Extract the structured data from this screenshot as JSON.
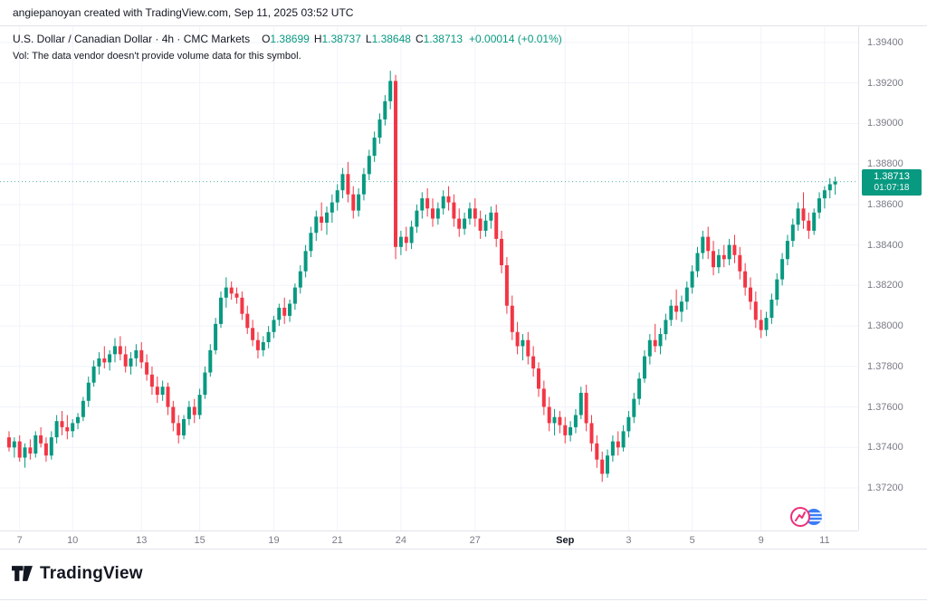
{
  "attribution": "angiepanoyan created with TradingView.com, Sep 11, 2025 03:52 UTC",
  "legend": {
    "title": "U.S. Dollar / Canadian Dollar · 4h · CMC Markets",
    "ohlc": {
      "o_label": "O",
      "o": "1.38699",
      "h_label": "H",
      "h": "1.38737",
      "l_label": "L",
      "l": "1.38648",
      "c_label": "C",
      "c": "1.38713",
      "change": "+0.00014 (+0.01%)"
    },
    "vol_note": "Vol: The data vendor doesn't provide volume data for this symbol."
  },
  "price_badge": {
    "price": "1.38713",
    "countdown": "01:07:18"
  },
  "footer": {
    "brand": "TradingView"
  },
  "colors": {
    "up": "#089981",
    "down": "#F23645",
    "text": "#131722",
    "muted": "#787b86",
    "grid": "#F0F3FA",
    "axis_border": "#E0E3EB",
    "badge_bg": "#089981"
  },
  "chart_data": {
    "type": "candlestick",
    "title": "U.S. Dollar / Canadian Dollar · 4h · CMC Markets",
    "symbol": "USD/CAD",
    "interval": "4h",
    "exchange": "CMC Markets",
    "last_price": 1.38713,
    "y_range": [
      1.3699,
      1.3948
    ],
    "y_ticks": [
      "1.39400",
      "1.39200",
      "1.39000",
      "1.38800",
      "1.38600",
      "1.38400",
      "1.38200",
      "1.38000",
      "1.37800",
      "1.37600",
      "1.37400",
      "1.37200"
    ],
    "x_labels": [
      {
        "label": "7",
        "index": 2
      },
      {
        "label": "10",
        "index": 12
      },
      {
        "label": "13",
        "index": 25
      },
      {
        "label": "15",
        "index": 36
      },
      {
        "label": "19",
        "index": 50
      },
      {
        "label": "21",
        "index": 62
      },
      {
        "label": "24",
        "index": 74
      },
      {
        "label": "27",
        "index": 88
      },
      {
        "label": "Sep",
        "index": 105,
        "bold": true
      },
      {
        "label": "3",
        "index": 117
      },
      {
        "label": "5",
        "index": 129
      },
      {
        "label": "9",
        "index": 142
      },
      {
        "label": "11",
        "index": 154
      }
    ],
    "candles": [
      [
        1.3745,
        1.3748,
        1.3738,
        1.374
      ],
      [
        1.374,
        1.3745,
        1.3735,
        1.3743
      ],
      [
        1.3743,
        1.3746,
        1.3733,
        1.3735
      ],
      [
        1.3735,
        1.3742,
        1.373,
        1.374
      ],
      [
        1.374,
        1.3744,
        1.3734,
        1.3737
      ],
      [
        1.3737,
        1.3748,
        1.3735,
        1.3746
      ],
      [
        1.3746,
        1.375,
        1.374,
        1.3742
      ],
      [
        1.3742,
        1.3745,
        1.3733,
        1.3736
      ],
      [
        1.3736,
        1.3748,
        1.3734,
        1.3745
      ],
      [
        1.3745,
        1.3756,
        1.3742,
        1.3753
      ],
      [
        1.3753,
        1.3758,
        1.3746,
        1.375
      ],
      [
        1.375,
        1.3756,
        1.3744,
        1.3748
      ],
      [
        1.3748,
        1.3754,
        1.3745,
        1.3752
      ],
      [
        1.3752,
        1.3757,
        1.3749,
        1.3755
      ],
      [
        1.3755,
        1.3765,
        1.3753,
        1.3763
      ],
      [
        1.3763,
        1.3775,
        1.376,
        1.3772
      ],
      [
        1.3772,
        1.3783,
        1.377,
        1.378
      ],
      [
        1.378,
        1.3787,
        1.3776,
        1.3784
      ],
      [
        1.3784,
        1.379,
        1.3779,
        1.3782
      ],
      [
        1.3782,
        1.3788,
        1.3778,
        1.3786
      ],
      [
        1.3786,
        1.3794,
        1.3782,
        1.379
      ],
      [
        1.379,
        1.3795,
        1.3783,
        1.3786
      ],
      [
        1.3786,
        1.379,
        1.3777,
        1.378
      ],
      [
        1.378,
        1.3787,
        1.3776,
        1.3784
      ],
      [
        1.3784,
        1.3791,
        1.378,
        1.3788
      ],
      [
        1.3788,
        1.3792,
        1.3779,
        1.3782
      ],
      [
        1.3782,
        1.3786,
        1.3773,
        1.3776
      ],
      [
        1.3776,
        1.378,
        1.3766,
        1.377
      ],
      [
        1.377,
        1.3775,
        1.3762,
        1.3766
      ],
      [
        1.3766,
        1.3773,
        1.3763,
        1.377
      ],
      [
        1.377,
        1.3772,
        1.3756,
        1.376
      ],
      [
        1.376,
        1.3763,
        1.3748,
        1.3752
      ],
      [
        1.3752,
        1.3756,
        1.3742,
        1.3746
      ],
      [
        1.3746,
        1.3756,
        1.3744,
        1.3754
      ],
      [
        1.3754,
        1.3763,
        1.3751,
        1.376
      ],
      [
        1.376,
        1.3764,
        1.3752,
        1.3756
      ],
      [
        1.3756,
        1.3769,
        1.3754,
        1.3766
      ],
      [
        1.3766,
        1.378,
        1.3764,
        1.3777
      ],
      [
        1.3777,
        1.3791,
        1.3775,
        1.3788
      ],
      [
        1.3788,
        1.3804,
        1.3786,
        1.3801
      ],
      [
        1.3801,
        1.3817,
        1.3799,
        1.3814
      ],
      [
        1.3814,
        1.3824,
        1.3809,
        1.3819
      ],
      [
        1.3819,
        1.3822,
        1.3813,
        1.3816
      ],
      [
        1.3816,
        1.3819,
        1.3811,
        1.3814
      ],
      [
        1.3814,
        1.3817,
        1.3803,
        1.3806
      ],
      [
        1.3806,
        1.381,
        1.3796,
        1.3799
      ],
      [
        1.3799,
        1.3803,
        1.379,
        1.3793
      ],
      [
        1.3793,
        1.3797,
        1.3784,
        1.3788
      ],
      [
        1.3788,
        1.3795,
        1.3785,
        1.3792
      ],
      [
        1.3792,
        1.38,
        1.3789,
        1.3797
      ],
      [
        1.3797,
        1.3805,
        1.3794,
        1.3803
      ],
      [
        1.3803,
        1.3811,
        1.38,
        1.3809
      ],
      [
        1.3809,
        1.3814,
        1.3801,
        1.3805
      ],
      [
        1.3805,
        1.3813,
        1.3802,
        1.3811
      ],
      [
        1.3811,
        1.3821,
        1.3808,
        1.3819
      ],
      [
        1.3819,
        1.383,
        1.3816,
        1.3827
      ],
      [
        1.3827,
        1.384,
        1.3824,
        1.3837
      ],
      [
        1.3837,
        1.3849,
        1.3834,
        1.3846
      ],
      [
        1.3846,
        1.3857,
        1.3842,
        1.3854
      ],
      [
        1.3854,
        1.3861,
        1.3847,
        1.3851
      ],
      [
        1.3851,
        1.3859,
        1.3845,
        1.3856
      ],
      [
        1.3856,
        1.3865,
        1.3851,
        1.3861
      ],
      [
        1.3861,
        1.387,
        1.3857,
        1.3867
      ],
      [
        1.3867,
        1.3878,
        1.3863,
        1.3875
      ],
      [
        1.3875,
        1.3881,
        1.3861,
        1.3865
      ],
      [
        1.3865,
        1.3869,
        1.3853,
        1.3857
      ],
      [
        1.3857,
        1.3868,
        1.3854,
        1.3865
      ],
      [
        1.3865,
        1.3878,
        1.3862,
        1.3875
      ],
      [
        1.3875,
        1.3887,
        1.3872,
        1.3884
      ],
      [
        1.3884,
        1.3896,
        1.3881,
        1.3893
      ],
      [
        1.3893,
        1.3905,
        1.389,
        1.3902
      ],
      [
        1.3902,
        1.3914,
        1.3899,
        1.3911
      ],
      [
        1.3911,
        1.3926,
        1.3907,
        1.3921
      ],
      [
        1.3921,
        1.3924,
        1.3833,
        1.3839
      ],
      [
        1.3839,
        1.3847,
        1.3835,
        1.3844
      ],
      [
        1.3844,
        1.3849,
        1.3837,
        1.3841
      ],
      [
        1.3841,
        1.3852,
        1.3838,
        1.3849
      ],
      [
        1.3849,
        1.386,
        1.3846,
        1.3857
      ],
      [
        1.3857,
        1.3866,
        1.3853,
        1.3863
      ],
      [
        1.3863,
        1.3868,
        1.3854,
        1.3858
      ],
      [
        1.3858,
        1.3863,
        1.3849,
        1.3853
      ],
      [
        1.3853,
        1.3861,
        1.385,
        1.3858
      ],
      [
        1.3858,
        1.3867,
        1.3855,
        1.3864
      ],
      [
        1.3864,
        1.3869,
        1.3857,
        1.3861
      ],
      [
        1.3861,
        1.3865,
        1.3849,
        1.3853
      ],
      [
        1.3853,
        1.3858,
        1.3844,
        1.3848
      ],
      [
        1.3848,
        1.3856,
        1.3845,
        1.3853
      ],
      [
        1.3853,
        1.3861,
        1.385,
        1.3858
      ],
      [
        1.3858,
        1.3863,
        1.3849,
        1.3853
      ],
      [
        1.3853,
        1.3857,
        1.3843,
        1.3847
      ],
      [
        1.3847,
        1.3855,
        1.3844,
        1.3852
      ],
      [
        1.3852,
        1.3859,
        1.3848,
        1.3856
      ],
      [
        1.3856,
        1.386,
        1.3839,
        1.3843
      ],
      [
        1.3843,
        1.3847,
        1.3826,
        1.383
      ],
      [
        1.383,
        1.3834,
        1.3806,
        1.381
      ],
      [
        1.381,
        1.3815,
        1.3793,
        1.3797
      ],
      [
        1.3797,
        1.3802,
        1.3786,
        1.379
      ],
      [
        1.379,
        1.3796,
        1.3783,
        1.3793
      ],
      [
        1.3793,
        1.3797,
        1.3781,
        1.3785
      ],
      [
        1.3785,
        1.379,
        1.3775,
        1.3779
      ],
      [
        1.3779,
        1.3782,
        1.3765,
        1.3769
      ],
      [
        1.3769,
        1.3773,
        1.3756,
        1.376
      ],
      [
        1.376,
        1.3765,
        1.3748,
        1.3752
      ],
      [
        1.3752,
        1.3759,
        1.3746,
        1.3755
      ],
      [
        1.3755,
        1.3758,
        1.3747,
        1.3751
      ],
      [
        1.3751,
        1.3755,
        1.3742,
        1.3746
      ],
      [
        1.3746,
        1.3753,
        1.3743,
        1.375
      ],
      [
        1.375,
        1.3759,
        1.3747,
        1.3756
      ],
      [
        1.3756,
        1.377,
        1.3754,
        1.3767
      ],
      [
        1.3767,
        1.3771,
        1.3748,
        1.3752
      ],
      [
        1.3752,
        1.3756,
        1.3738,
        1.3742
      ],
      [
        1.3742,
        1.3746,
        1.373,
        1.3734
      ],
      [
        1.3734,
        1.3738,
        1.3723,
        1.3727
      ],
      [
        1.3727,
        1.3739,
        1.3725,
        1.3736
      ],
      [
        1.3736,
        1.3746,
        1.3733,
        1.3743
      ],
      [
        1.3743,
        1.3748,
        1.3736,
        1.374
      ],
      [
        1.374,
        1.3751,
        1.3738,
        1.3748
      ],
      [
        1.3748,
        1.3758,
        1.3745,
        1.3755
      ],
      [
        1.3755,
        1.3767,
        1.3752,
        1.3764
      ],
      [
        1.3764,
        1.3777,
        1.3761,
        1.3774
      ],
      [
        1.3774,
        1.3788,
        1.3772,
        1.3785
      ],
      [
        1.3785,
        1.3796,
        1.3781,
        1.3793
      ],
      [
        1.3793,
        1.3801,
        1.3787,
        1.379
      ],
      [
        1.379,
        1.3799,
        1.3786,
        1.3796
      ],
      [
        1.3796,
        1.3806,
        1.3793,
        1.3803
      ],
      [
        1.3803,
        1.3813,
        1.38,
        1.381
      ],
      [
        1.381,
        1.3818,
        1.3803,
        1.3807
      ],
      [
        1.3807,
        1.3815,
        1.3802,
        1.3812
      ],
      [
        1.3812,
        1.3822,
        1.3808,
        1.3819
      ],
      [
        1.3819,
        1.383,
        1.3816,
        1.3827
      ],
      [
        1.3827,
        1.3839,
        1.3824,
        1.3836
      ],
      [
        1.3836,
        1.3847,
        1.3833,
        1.3844
      ],
      [
        1.3844,
        1.3849,
        1.3833,
        1.3837
      ],
      [
        1.3837,
        1.3842,
        1.3825,
        1.3829
      ],
      [
        1.3829,
        1.3838,
        1.3826,
        1.3835
      ],
      [
        1.3835,
        1.384,
        1.3829,
        1.3833
      ],
      [
        1.3833,
        1.3843,
        1.383,
        1.384
      ],
      [
        1.384,
        1.3845,
        1.3831,
        1.3835
      ],
      [
        1.3835,
        1.3839,
        1.3823,
        1.3827
      ],
      [
        1.3827,
        1.3831,
        1.3815,
        1.3819
      ],
      [
        1.3819,
        1.3824,
        1.3808,
        1.3812
      ],
      [
        1.3812,
        1.3817,
        1.3799,
        1.3803
      ],
      [
        1.3803,
        1.3808,
        1.3794,
        1.3798
      ],
      [
        1.3798,
        1.3807,
        1.3795,
        1.3804
      ],
      [
        1.3804,
        1.3816,
        1.3801,
        1.3813
      ],
      [
        1.3813,
        1.3826,
        1.381,
        1.3823
      ],
      [
        1.3823,
        1.3836,
        1.382,
        1.3833
      ],
      [
        1.3833,
        1.3845,
        1.383,
        1.3842
      ],
      [
        1.3842,
        1.3853,
        1.3839,
        1.385
      ],
      [
        1.385,
        1.3861,
        1.3847,
        1.3858
      ],
      [
        1.3858,
        1.3866,
        1.3848,
        1.3852
      ],
      [
        1.3852,
        1.3856,
        1.3843,
        1.3847
      ],
      [
        1.3847,
        1.3858,
        1.3845,
        1.3856
      ],
      [
        1.3856,
        1.3866,
        1.3853,
        1.3863
      ],
      [
        1.3863,
        1.3869,
        1.3858,
        1.3867
      ],
      [
        1.3867,
        1.3873,
        1.3863,
        1.387
      ],
      [
        1.38699,
        1.38737,
        1.38648,
        1.38713
      ]
    ]
  }
}
